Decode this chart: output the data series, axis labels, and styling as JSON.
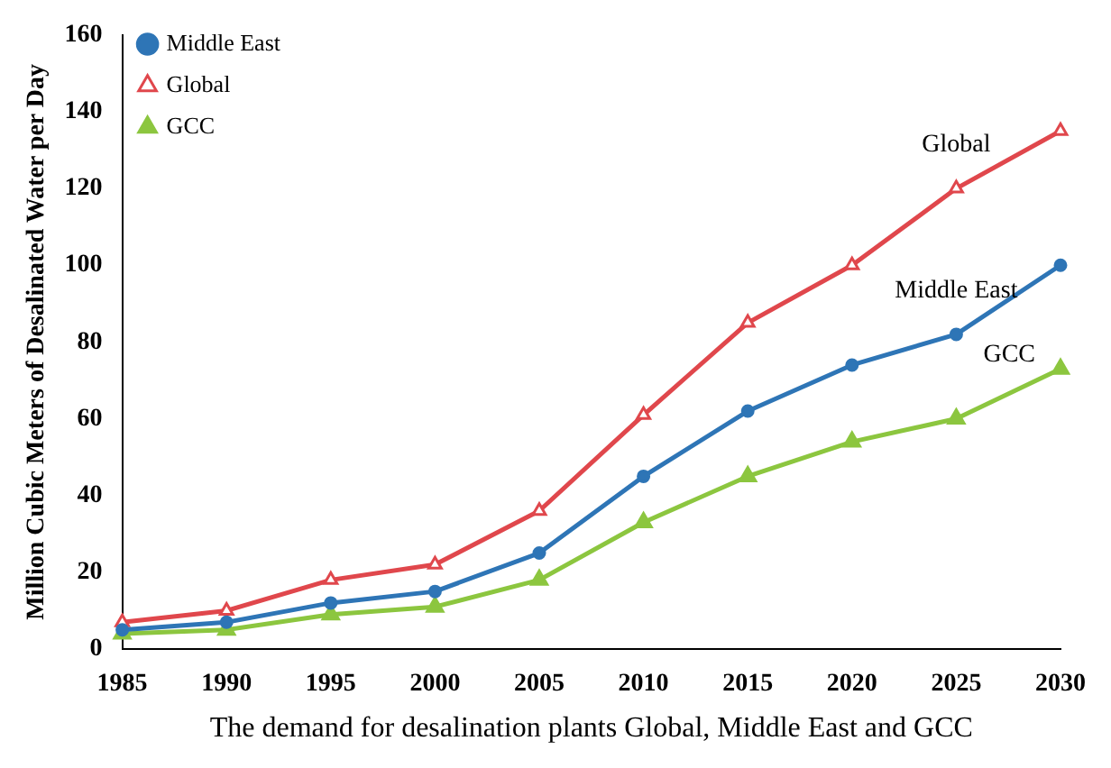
{
  "chart_data": {
    "type": "line",
    "xlabel": "The demand for desalination plants Global, Middle East and GCC",
    "ylabel": "Million Cubic Meters of Desalinated Water per Day",
    "categories": [
      "1985",
      "1990",
      "1995",
      "2000",
      "2005",
      "2010",
      "2015",
      "2020",
      "2025",
      "2030"
    ],
    "series": [
      {
        "name": "Middle East",
        "color": "#2e75b6",
        "marker": "circle",
        "values": [
          5,
          7,
          12,
          15,
          25,
          45,
          62,
          74,
          82,
          100
        ]
      },
      {
        "name": "Global",
        "color": "#e0474c",
        "marker": "triangle",
        "values": [
          7,
          10,
          18,
          22,
          36,
          61,
          85,
          100,
          120,
          135
        ]
      },
      {
        "name": "GCC",
        "color": "#8cc63f",
        "marker": "triangle",
        "values": [
          4,
          5,
          9,
          11,
          18,
          33,
          45,
          54,
          60,
          73
        ]
      }
    ],
    "ylim": [
      0,
      160
    ],
    "yticks": [
      0,
      20,
      40,
      60,
      80,
      100,
      120,
      140,
      160
    ],
    "grid": false,
    "legend": "top left",
    "line_style": "solid",
    "annotations": [
      {
        "text": "Global",
        "x": "2025",
        "y": 120
      },
      {
        "text": "Middle East",
        "x": "2025",
        "y": 82
      },
      {
        "text": "GCC",
        "x": "2030",
        "y": 73
      }
    ]
  }
}
